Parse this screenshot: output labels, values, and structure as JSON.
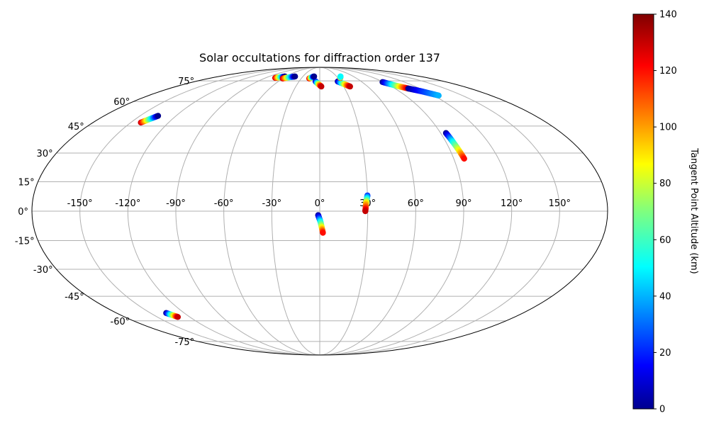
{
  "chart_data": {
    "type": "scatter",
    "projection": "mollweide",
    "title": "Solar occultations for diffraction order 137",
    "grid": true,
    "lon_ticks": [
      -150,
      -120,
      -90,
      -60,
      -30,
      0,
      30,
      60,
      90,
      120,
      150
    ],
    "lat_ticks": [
      -75,
      -60,
      -45,
      -30,
      -15,
      0,
      15,
      30,
      45,
      60,
      75
    ],
    "lon_tick_labels": [
      "-150°",
      "-120°",
      "-90°",
      "-60°",
      "-30°",
      "0°",
      "30°",
      "60°",
      "90°",
      "120°",
      "150°"
    ],
    "lat_tick_labels": [
      "-75°",
      "-60°",
      "-45°",
      "-30°",
      "-15°",
      "0°",
      "15°",
      "30°",
      "45°",
      "60°",
      "75°"
    ],
    "colormap": "jet",
    "colorbar": {
      "label": "Tangent Point Altitude (km)",
      "range": [
        0,
        140
      ],
      "ticks": [
        0,
        20,
        40,
        60,
        80,
        100,
        120,
        140
      ],
      "tick_labels": [
        "0",
        "20",
        "40",
        "60",
        "80",
        "100",
        "120",
        "140"
      ]
    },
    "series": [
      {
        "points": [
          [
            -142.0,
            47.0,
            130
          ],
          [
            -135.0,
            51.0,
            0
          ]
        ]
      },
      {
        "points": [
          [
            -74.0,
            77.5,
            130
          ],
          [
            -68.0,
            78.2,
            70
          ],
          [
            -62.0,
            78.8,
            0
          ]
        ]
      },
      {
        "points": [
          [
            -60.0,
            77.0,
            130
          ],
          [
            -53.0,
            78.0,
            70
          ],
          [
            -44.0,
            78.8,
            0
          ]
        ]
      },
      {
        "points": [
          [
            -17.0,
            77.0,
            130
          ],
          [
            -14.0,
            78.0,
            70
          ],
          [
            -10.0,
            78.8,
            0
          ]
        ]
      },
      {
        "points": [
          [
            -6.0,
            74.5,
            0
          ],
          [
            -2.0,
            72.5,
            70
          ],
          [
            2.0,
            70.5,
            130
          ]
        ]
      },
      {
        "points": [
          [
            26.0,
            74.5,
            0
          ],
          [
            32.0,
            72.5,
            70
          ],
          [
            38.0,
            70.5,
            130
          ]
        ]
      },
      {
        "points": [
          [
            34.0,
            77.5,
            130
          ],
          [
            35.5,
            78.2,
            70
          ],
          [
            37.0,
            78.8,
            50
          ]
        ]
      },
      {
        "points": [
          [
            89.0,
            74.0,
            0
          ],
          [
            98.0,
            71.0,
            70
          ],
          [
            106.0,
            69.0,
            130
          ]
        ]
      },
      {
        "points": [
          [
            106.0,
            69.0,
            0
          ],
          [
            115.0,
            67.0,
            20
          ],
          [
            125.0,
            64.0,
            40
          ]
        ]
      },
      {
        "points": [
          [
            94.0,
            41.0,
            0
          ],
          [
            95.0,
            36.0,
            50
          ],
          [
            97.0,
            27.0,
            120
          ]
        ]
      },
      {
        "points": [
          [
            30.0,
            8.0,
            20
          ],
          [
            29.0,
            4.0,
            90
          ],
          [
            28.5,
            0.0,
            130
          ]
        ]
      },
      {
        "points": [
          [
            -1.0,
            -2.0,
            0
          ],
          [
            0.5,
            -5.5,
            50
          ],
          [
            2.0,
            -11.0,
            120
          ]
        ]
      },
      {
        "points": [
          [
            -136.0,
            -55.0,
            0
          ],
          [
            -131.0,
            -57.5,
            130
          ]
        ]
      }
    ]
  }
}
